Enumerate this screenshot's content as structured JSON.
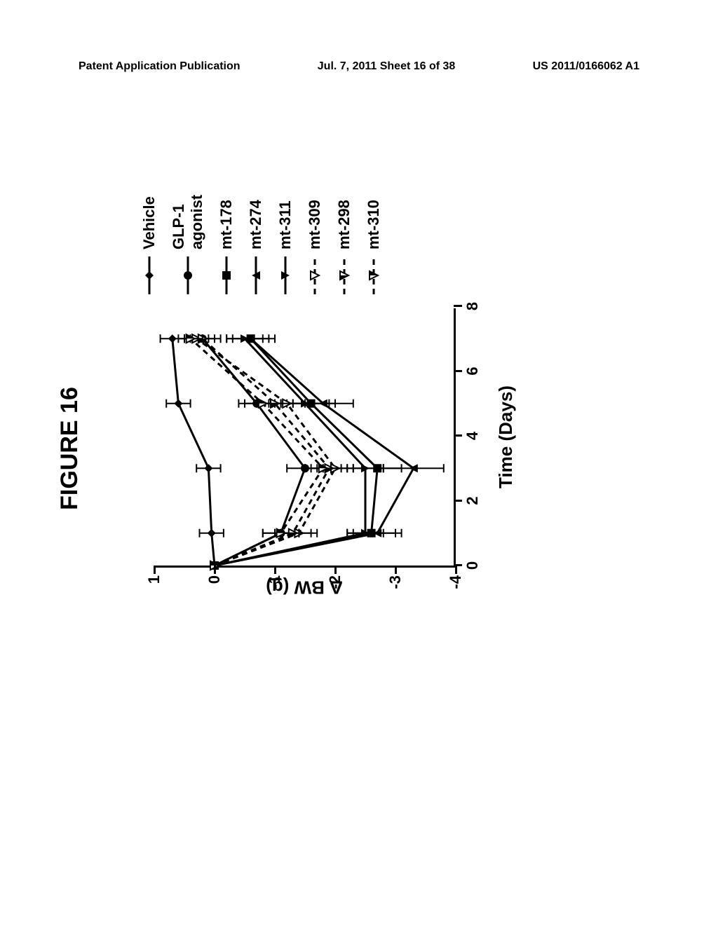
{
  "header": {
    "left": "Patent Application Publication",
    "center": "Jul. 7, 2011  Sheet 16 of 38",
    "right": "US 2011/0166062 A1"
  },
  "figure": {
    "title": "FIGURE 16",
    "chart": {
      "type": "line",
      "xlabel": "Time (Days)",
      "ylabel": "Δ BW (g)",
      "xlim": [
        0,
        8
      ],
      "ylim": [
        -4,
        1
      ],
      "xticks": [
        0,
        2,
        4,
        6,
        8
      ],
      "yticks": [
        -4,
        -3,
        -2,
        -1,
        0,
        1
      ],
      "background_color": "#ffffff",
      "axis_color": "#000000",
      "line_width": 3,
      "error_cap": 6,
      "series": [
        {
          "label": "Vehicle",
          "marker": "diamond-filled",
          "dash": "solid",
          "x": [
            0,
            1,
            3,
            5,
            7
          ],
          "y": [
            0.0,
            0.05,
            0.1,
            0.6,
            0.7
          ],
          "err": [
            0.0,
            0.2,
            0.2,
            0.2,
            0.2
          ]
        },
        {
          "label": "GLP-1 agonist",
          "marker": "circle-filled",
          "dash": "solid",
          "x": [
            0,
            1,
            3,
            5,
            7
          ],
          "y": [
            0.0,
            -1.1,
            -1.5,
            -0.7,
            0.2
          ],
          "err": [
            0.0,
            0.3,
            0.3,
            0.3,
            0.3
          ]
        },
        {
          "label": "mt-178",
          "marker": "square-filled",
          "dash": "solid",
          "x": [
            0,
            1,
            3,
            5,
            7
          ],
          "y": [
            0.0,
            -2.6,
            -2.7,
            -1.6,
            -0.6
          ],
          "err": [
            0.0,
            0.4,
            0.4,
            0.4,
            0.3
          ]
        },
        {
          "label": "mt-274",
          "marker": "triangle-up-filled",
          "dash": "solid",
          "x": [
            0,
            1,
            3,
            5,
            7
          ],
          "y": [
            0.0,
            -2.7,
            -3.3,
            -1.8,
            -0.6
          ],
          "err": [
            0.0,
            0.4,
            0.5,
            0.5,
            0.4
          ]
        },
        {
          "label": "mt-311",
          "marker": "triangle-down-filled",
          "dash": "solid",
          "x": [
            0,
            1,
            3,
            5,
            7
          ],
          "y": [
            0.0,
            -2.5,
            -2.5,
            -1.5,
            -0.5
          ],
          "err": [
            0.0,
            0.3,
            0.3,
            0.4,
            0.3
          ]
        },
        {
          "label": "mt-309",
          "marker": "triangle-down-open",
          "dash": "dashed",
          "x": [
            0,
            1,
            3,
            5,
            7
          ],
          "y": [
            0.0,
            -1.4,
            -2.0,
            -1.2,
            0.3
          ],
          "err": [
            0.0,
            0.3,
            0.3,
            0.3,
            0.2
          ]
        },
        {
          "label": "mt-298",
          "marker": "triangle-down-half",
          "dash": "dashed",
          "x": [
            0,
            1,
            3,
            5,
            7
          ],
          "y": [
            0.0,
            -1.3,
            -1.9,
            -1.0,
            0.2
          ],
          "err": [
            0.0,
            0.3,
            0.3,
            0.3,
            0.2
          ]
        },
        {
          "label": "mt-310",
          "marker": "triangle-down-half2",
          "dash": "dashed",
          "x": [
            0,
            1,
            3,
            5,
            7
          ],
          "y": [
            0.0,
            -1.1,
            -1.8,
            -0.8,
            0.4
          ],
          "err": [
            0.0,
            0.3,
            0.3,
            0.3,
            0.2
          ]
        }
      ]
    }
  }
}
